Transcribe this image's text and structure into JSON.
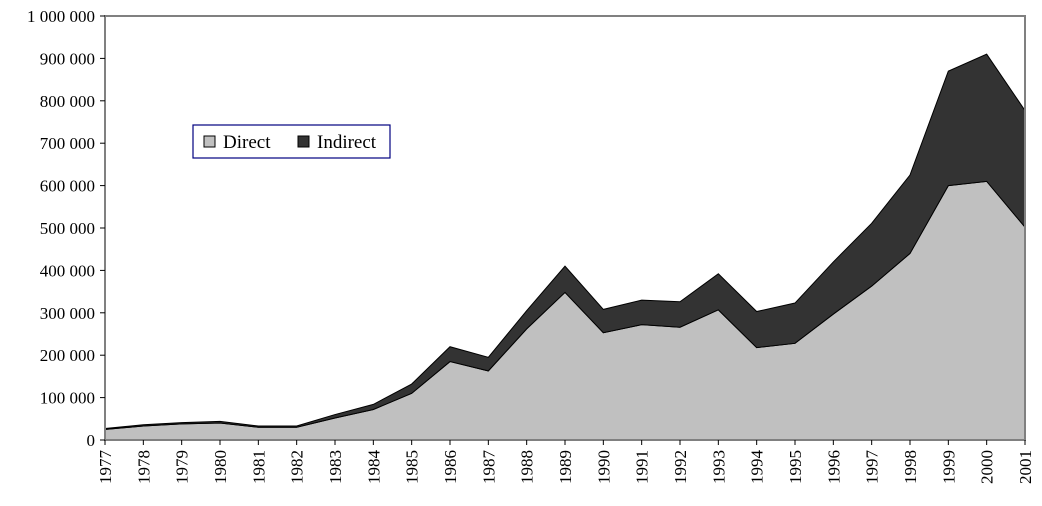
{
  "chart_data": {
    "type": "area",
    "stacked": true,
    "categories": [
      "1977",
      "1978",
      "1979",
      "1980",
      "1981",
      "1982",
      "1983",
      "1984",
      "1985",
      "1986",
      "1987",
      "1988",
      "1989",
      "1990",
      "1991",
      "1992",
      "1993",
      "1994",
      "1995",
      "1996",
      "1997",
      "1998",
      "1999",
      "2000",
      "2001"
    ],
    "series": [
      {
        "name": "Direct",
        "color": "#c0c0c0",
        "values": [
          25000,
          33000,
          38000,
          40000,
          30000,
          30000,
          52000,
          72000,
          110000,
          185000,
          163000,
          262000,
          348000,
          253000,
          272000,
          266000,
          307000,
          218000,
          228000,
          297000,
          363000,
          440000,
          600000,
          610000,
          502000
        ]
      },
      {
        "name": "Indirect",
        "color": "#333333",
        "values": [
          2000,
          3000,
          3000,
          4000,
          3000,
          3000,
          8000,
          12000,
          22000,
          35000,
          32000,
          43000,
          62000,
          55000,
          58000,
          60000,
          85000,
          85000,
          95000,
          123000,
          148000,
          185000,
          270000,
          300000,
          275000
        ]
      }
    ],
    "y_ticks": [
      "0",
      "100 000",
      "200 000",
      "300 000",
      "400 000",
      "500 000",
      "600 000",
      "700 000",
      "800 000",
      "900 000",
      "1 000 000"
    ],
    "ylim": [
      0,
      1000000
    ],
    "grid": false,
    "legend_position": "upper-left inside plot",
    "title": "",
    "xlabel": "",
    "ylabel": ""
  }
}
